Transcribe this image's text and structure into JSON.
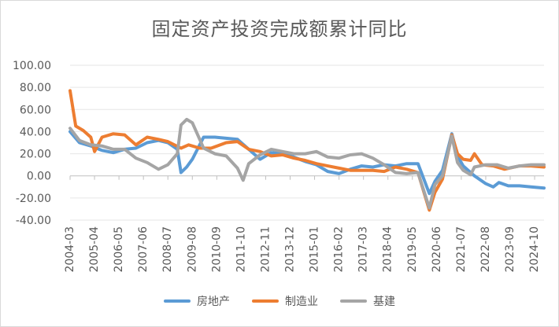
{
  "chart_data": {
    "type": "line",
    "title": "固定资产投资完成额累计同比",
    "ylim": [
      -40,
      100
    ],
    "yticks": [
      "100.00",
      "80.00",
      "60.00",
      "40.00",
      "20.00",
      "0.00",
      "-20.00",
      "-40.00"
    ],
    "ytick_values": [
      100,
      80,
      60,
      40,
      20,
      0,
      -20,
      -40
    ],
    "xticks": [
      "2004-03",
      "2005-04",
      "2006-05",
      "2007-06",
      "2008-07",
      "2009-08",
      "2010-09",
      "2011-10",
      "2012-11",
      "2013-12",
      "2015-01",
      "2016-02",
      "2017-03",
      "2018-04",
      "2019-05",
      "2020-06",
      "2021-07",
      "2022-08",
      "2023-09",
      "2024-10"
    ],
    "x_start": "2004-03",
    "x_end": "2025-03",
    "grid": "horizontal",
    "legend_position": "bottom",
    "series": [
      {
        "name": "房地产",
        "color": "#5b9bd5",
        "points": [
          [
            "2004-03",
            40
          ],
          [
            "2004-08",
            30
          ],
          [
            "2005-02",
            27
          ],
          [
            "2005-08",
            23
          ],
          [
            "2006-02",
            21
          ],
          [
            "2006-08",
            24
          ],
          [
            "2007-02",
            25
          ],
          [
            "2007-08",
            30
          ],
          [
            "2008-02",
            32
          ],
          [
            "2008-07",
            30
          ],
          [
            "2008-12",
            24
          ],
          [
            "2009-02",
            3
          ],
          [
            "2009-05",
            8
          ],
          [
            "2009-08",
            15
          ],
          [
            "2010-02",
            35
          ],
          [
            "2010-08",
            35
          ],
          [
            "2011-02",
            34
          ],
          [
            "2011-08",
            33
          ],
          [
            "2012-02",
            24
          ],
          [
            "2012-08",
            15
          ],
          [
            "2013-02",
            21
          ],
          [
            "2013-08",
            20
          ],
          [
            "2014-02",
            17
          ],
          [
            "2014-08",
            13
          ],
          [
            "2015-02",
            10
          ],
          [
            "2015-08",
            4
          ],
          [
            "2016-02",
            2
          ],
          [
            "2016-08",
            6
          ],
          [
            "2017-02",
            9
          ],
          [
            "2017-08",
            8
          ],
          [
            "2018-02",
            10
          ],
          [
            "2018-08",
            9
          ],
          [
            "2019-02",
            11
          ],
          [
            "2019-08",
            11
          ],
          [
            "2020-02",
            -16
          ],
          [
            "2020-05",
            -5
          ],
          [
            "2020-09",
            5
          ],
          [
            "2021-02",
            38
          ],
          [
            "2021-05",
            18
          ],
          [
            "2021-08",
            9
          ],
          [
            "2022-02",
            0
          ],
          [
            "2022-08",
            -7
          ],
          [
            "2022-12",
            -10
          ],
          [
            "2023-03",
            -6
          ],
          [
            "2023-08",
            -9
          ],
          [
            "2024-02",
            -9
          ],
          [
            "2024-08",
            -10
          ],
          [
            "2025-03",
            -11
          ]
        ]
      },
      {
        "name": "制造业",
        "color": "#ed7d31",
        "points": [
          [
            "2004-03",
            77
          ],
          [
            "2004-06",
            45
          ],
          [
            "2004-10",
            41
          ],
          [
            "2005-02",
            35
          ],
          [
            "2005-04",
            22
          ],
          [
            "2005-08",
            35
          ],
          [
            "2006-02",
            38
          ],
          [
            "2006-08",
            37
          ],
          [
            "2007-02",
            28
          ],
          [
            "2007-08",
            35
          ],
          [
            "2008-02",
            33
          ],
          [
            "2008-07",
            31
          ],
          [
            "2009-02",
            25
          ],
          [
            "2009-06",
            28
          ],
          [
            "2009-12",
            25
          ],
          [
            "2010-06",
            25
          ],
          [
            "2011-02",
            30
          ],
          [
            "2011-08",
            31
          ],
          [
            "2012-02",
            24
          ],
          [
            "2012-08",
            22
          ],
          [
            "2013-02",
            18
          ],
          [
            "2013-08",
            19
          ],
          [
            "2014-02",
            16
          ],
          [
            "2014-08",
            14
          ],
          [
            "2015-02",
            11
          ],
          [
            "2015-08",
            9
          ],
          [
            "2016-02",
            7
          ],
          [
            "2016-08",
            5
          ],
          [
            "2017-02",
            5
          ],
          [
            "2017-08",
            5
          ],
          [
            "2018-02",
            4
          ],
          [
            "2018-08",
            8
          ],
          [
            "2019-02",
            6
          ],
          [
            "2019-08",
            3
          ],
          [
            "2020-02",
            -31
          ],
          [
            "2020-05",
            -15
          ],
          [
            "2020-09",
            -3
          ],
          [
            "2021-02",
            37
          ],
          [
            "2021-05",
            20
          ],
          [
            "2021-08",
            15
          ],
          [
            "2021-12",
            14
          ],
          [
            "2022-02",
            20
          ],
          [
            "2022-06",
            10
          ],
          [
            "2022-12",
            9
          ],
          [
            "2023-06",
            6
          ],
          [
            "2024-02",
            9
          ],
          [
            "2024-08",
            9
          ],
          [
            "2025-03",
            8
          ]
        ]
      },
      {
        "name": "基建",
        "color": "#a5a5a5",
        "points": [
          [
            "2004-03",
            43
          ],
          [
            "2004-08",
            32
          ],
          [
            "2005-02",
            28
          ],
          [
            "2005-08",
            27
          ],
          [
            "2006-02",
            24
          ],
          [
            "2006-08",
            24
          ],
          [
            "2007-02",
            16
          ],
          [
            "2007-08",
            12
          ],
          [
            "2008-02",
            6
          ],
          [
            "2008-07",
            10
          ],
          [
            "2008-12",
            20
          ],
          [
            "2009-02",
            46
          ],
          [
            "2009-05",
            51
          ],
          [
            "2009-08",
            48
          ],
          [
            "2010-02",
            25
          ],
          [
            "2010-08",
            20
          ],
          [
            "2011-02",
            18
          ],
          [
            "2011-08",
            7
          ],
          [
            "2011-11",
            -4
          ],
          [
            "2012-02",
            11
          ],
          [
            "2012-08",
            19
          ],
          [
            "2013-02",
            24
          ],
          [
            "2013-08",
            22
          ],
          [
            "2014-02",
            20
          ],
          [
            "2014-08",
            20
          ],
          [
            "2015-02",
            22
          ],
          [
            "2015-08",
            17
          ],
          [
            "2016-02",
            16
          ],
          [
            "2016-08",
            19
          ],
          [
            "2017-02",
            20
          ],
          [
            "2017-08",
            16
          ],
          [
            "2018-02",
            10
          ],
          [
            "2018-08",
            3
          ],
          [
            "2019-02",
            2
          ],
          [
            "2019-08",
            3
          ],
          [
            "2020-02",
            -29
          ],
          [
            "2020-05",
            -8
          ],
          [
            "2020-09",
            0
          ],
          [
            "2021-02",
            36
          ],
          [
            "2021-05",
            12
          ],
          [
            "2021-08",
            5
          ],
          [
            "2021-12",
            1
          ],
          [
            "2022-02",
            8
          ],
          [
            "2022-08",
            10
          ],
          [
            "2023-02",
            10
          ],
          [
            "2023-08",
            7
          ],
          [
            "2024-02",
            9
          ],
          [
            "2024-08",
            10
          ],
          [
            "2025-03",
            10
          ]
        ]
      }
    ]
  }
}
